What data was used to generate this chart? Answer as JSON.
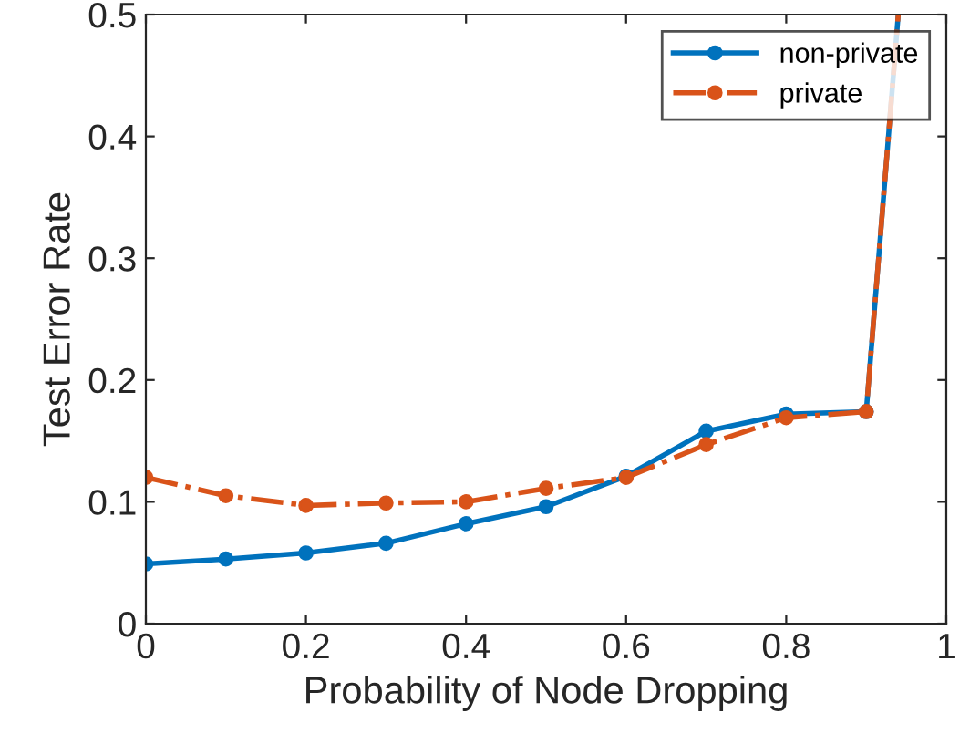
{
  "chart_data": {
    "type": "line",
    "xlabel": "Probability of Node Dropping",
    "ylabel": "Test Error Rate",
    "x": [
      0,
      0.1,
      0.2,
      0.3,
      0.4,
      0.5,
      0.6,
      0.7,
      0.8,
      0.9,
      0.94
    ],
    "series": [
      {
        "name": "non-private",
        "color": "#0072bd",
        "line_style": "solid",
        "values": [
          0.049,
          0.053,
          0.058,
          0.066,
          0.082,
          0.096,
          0.121,
          0.158,
          0.172,
          0.174,
          0.5
        ]
      },
      {
        "name": "private",
        "color": "#d95319",
        "line_style": "dashdot",
        "values": [
          0.12,
          0.105,
          0.097,
          0.099,
          0.1,
          0.111,
          0.12,
          0.147,
          0.169,
          0.174,
          0.5
        ]
      }
    ],
    "marker": "circle",
    "xlim": [
      0,
      1
    ],
    "ylim": [
      0,
      0.5
    ],
    "xticks": [
      0,
      0.2,
      0.4,
      0.6,
      0.8,
      1
    ],
    "yticks": [
      0,
      0.1,
      0.2,
      0.3,
      0.4,
      0.5
    ],
    "grid": false,
    "legend": "top right"
  }
}
